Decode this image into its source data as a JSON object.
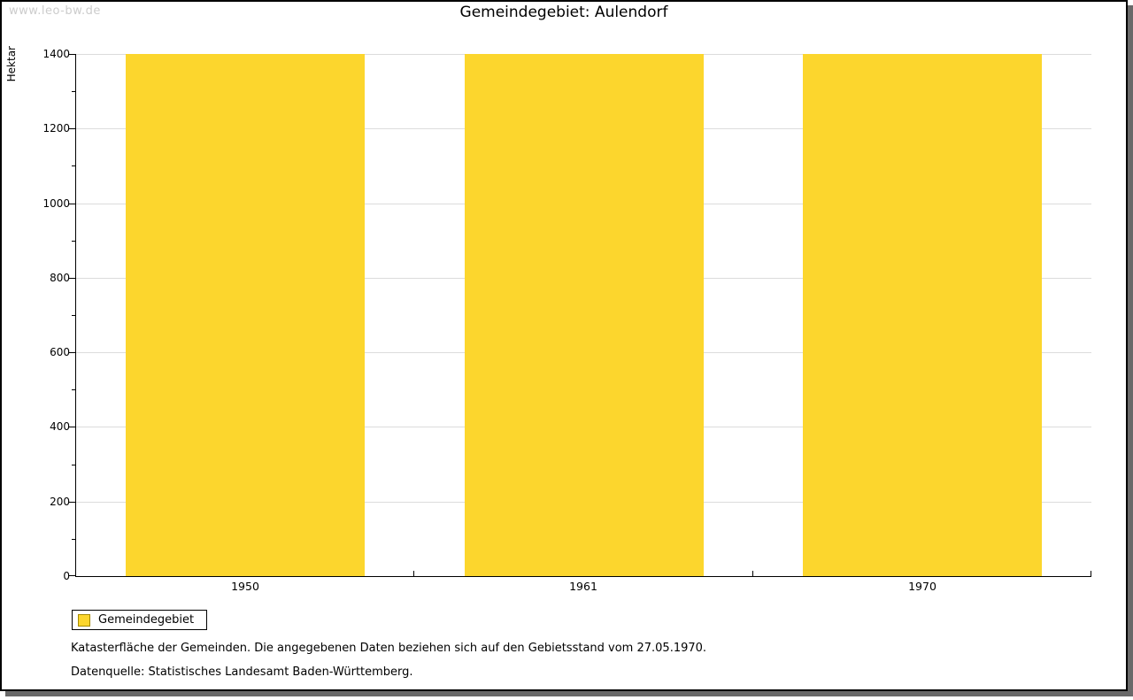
{
  "watermark": "www.leo-bw.de",
  "chart_data": {
    "type": "bar",
    "title": "Gemeindegebiet: Aulendorf",
    "categories": [
      "1950",
      "1961",
      "1970"
    ],
    "series": [
      {
        "name": "Gemeindegebiet",
        "values": [
          1400,
          1400,
          1400
        ]
      }
    ],
    "xlabel": "",
    "ylabel": "Hektar",
    "ylim": [
      0,
      1400
    ],
    "ytick_step": 200,
    "yminor_step": 100,
    "grid": true,
    "gridline_color": "#dcdcdc",
    "bar_color": "#fcd62d",
    "bar_border_color": "#a58a00",
    "legend_position": "bottom-left"
  },
  "legend": {
    "items": [
      {
        "label": "Gemeindegebiet",
        "color": "#fcd62d"
      }
    ]
  },
  "footnotes": [
    "Katasterfläche der Gemeinden. Die angegebenen Daten beziehen sich auf den Gebietsstand vom 27.05.1970.",
    "Datenquelle: Statistisches Landesamt Baden-Württemberg."
  ]
}
